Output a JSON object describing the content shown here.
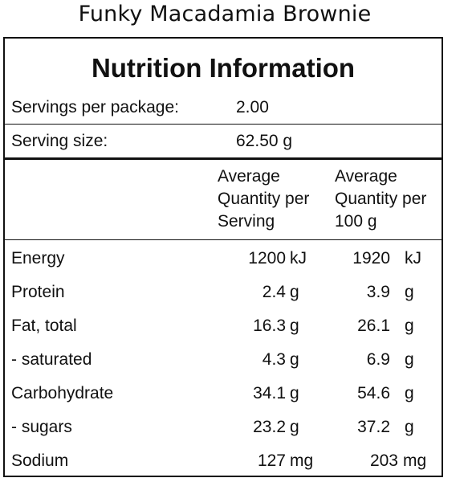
{
  "product": {
    "name": "Funky Macadamia Brownie"
  },
  "panel": {
    "heading": "Nutrition Information",
    "servings_label": "Servings per package:",
    "servings_value": "2.00",
    "serving_size_label": "Serving size:",
    "serving_size_value": "62.50 g",
    "col_per_serving": [
      "Average",
      "Quantity per",
      "Serving"
    ],
    "col_per_100g": [
      "Average",
      "Quantity per",
      "100 g"
    ]
  },
  "rows": [
    {
      "name": "Energy",
      "serving": "1200",
      "serving_unit": "kJ",
      "per100": "1920",
      "per100_unit": "kJ"
    },
    {
      "name": "Protein",
      "serving": "2.4",
      "serving_unit": "g",
      "per100": "3.9",
      "per100_unit": "g"
    },
    {
      "name": "Fat, total",
      "serving": "16.3",
      "serving_unit": "g",
      "per100": "26.1",
      "per100_unit": "g"
    },
    {
      "name": "- saturated",
      "serving": "4.3",
      "serving_unit": "g",
      "per100": "6.9",
      "per100_unit": "g"
    },
    {
      "name": "Carbohydrate",
      "serving": "34.1",
      "serving_unit": "g",
      "per100": "54.6",
      "per100_unit": "g"
    },
    {
      "name": "- sugars",
      "serving": "23.2",
      "serving_unit": "g",
      "per100": "37.2",
      "per100_unit": "g"
    },
    {
      "name": "Sodium",
      "serving": "127",
      "serving_unit": "mg",
      "per100": "203",
      "per100_unit": "mg"
    }
  ]
}
